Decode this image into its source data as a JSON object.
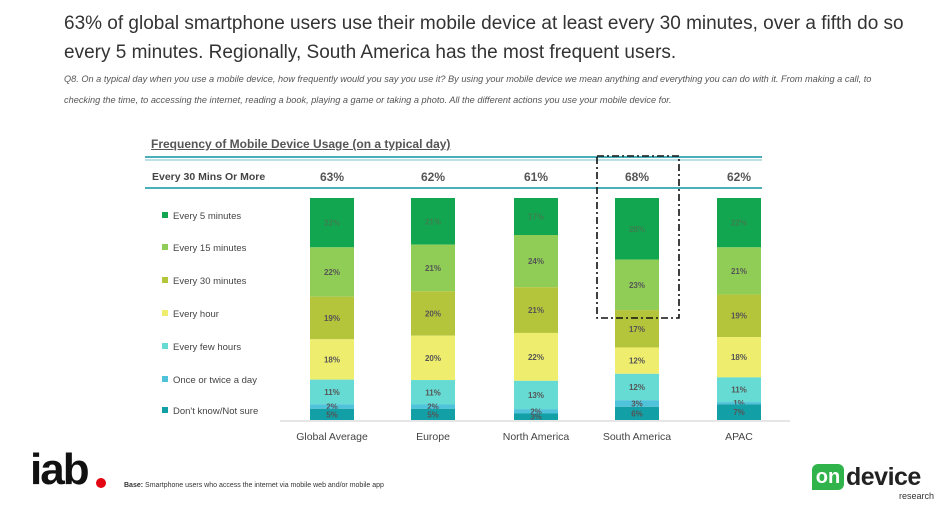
{
  "headline": "63% of global smartphone users use their mobile device at least every 30 minutes, over a fifth do so every 5 minutes. Regionally, South America has the most frequent users.",
  "question": "Q8. On a typical day when you use a mobile device, how frequently would you say you use it? By using your mobile device we mean anything and everything you can do with it. From making a call, to checking the time, to accessing the internet, reading a book, playing a game or taking a photo. All the different actions you use your mobile device for.",
  "base_label": "Base:",
  "base_text": "Smartphone users who access the internet via mobile web and/or mobile app",
  "logos": {
    "iab": "iab",
    "ondevice_on": "on",
    "ondevice_device": "device",
    "ondevice_research": "research"
  },
  "colors": {
    "every_5_minutes": "#12a650",
    "every_15_minutes": "#8fcd57",
    "every_30_minutes": "#b4c43b",
    "every_hour": "#eeed6e",
    "every_few_hours": "#66dbd3",
    "once_or_twice": "#4fc3d9",
    "dont_know": "#139fa6",
    "rule": "#4bafba"
  },
  "chart_data": {
    "type": "bar",
    "stacked": true,
    "title": "Frequency of Mobile Device Usage (on a typical day)",
    "summary_row": {
      "label": "Every 30 Mins Or More",
      "values": [
        "63%",
        "62%",
        "61%",
        "68%",
        "62%"
      ]
    },
    "categories": [
      "Global Average",
      "Europe",
      "North America",
      "South America",
      "APAC"
    ],
    "legend_position": "left",
    "ylim": [
      0,
      100
    ],
    "highlighted_category": "South America",
    "series": [
      {
        "name": "Every 5 minutes",
        "values": [
          22,
          21,
          17,
          28,
          22
        ],
        "labels": [
          "22%",
          "21%",
          "17%",
          "28%",
          "22%"
        ]
      },
      {
        "name": "Every 15 minutes",
        "values": [
          22,
          21,
          24,
          23,
          21
        ],
        "labels": [
          "22%",
          "21%",
          "24%",
          "23%",
          "21%"
        ]
      },
      {
        "name": "Every 30 minutes",
        "values": [
          19,
          20,
          21,
          17,
          19
        ],
        "labels": [
          "19%",
          "20%",
          "21%",
          "17%",
          "19%"
        ]
      },
      {
        "name": "Every hour",
        "values": [
          18,
          20,
          22,
          12,
          18
        ],
        "labels": [
          "18%",
          "20%",
          "22%",
          "12%",
          "18%"
        ]
      },
      {
        "name": "Every few hours",
        "values": [
          11,
          11,
          13,
          12,
          11
        ],
        "labels": [
          "11%",
          "11%",
          "13%",
          "12%",
          "11%"
        ]
      },
      {
        "name": "Once or twice a day",
        "values": [
          2,
          2,
          2,
          3,
          1
        ],
        "labels": [
          "2%",
          "2%",
          "2%",
          "3%",
          "1%"
        ]
      },
      {
        "name": "Don't know/Not sure",
        "values": [
          5,
          5,
          3,
          6,
          7
        ],
        "labels": [
          "5%",
          "5%",
          "3%",
          "6%",
          "7%"
        ]
      }
    ]
  }
}
